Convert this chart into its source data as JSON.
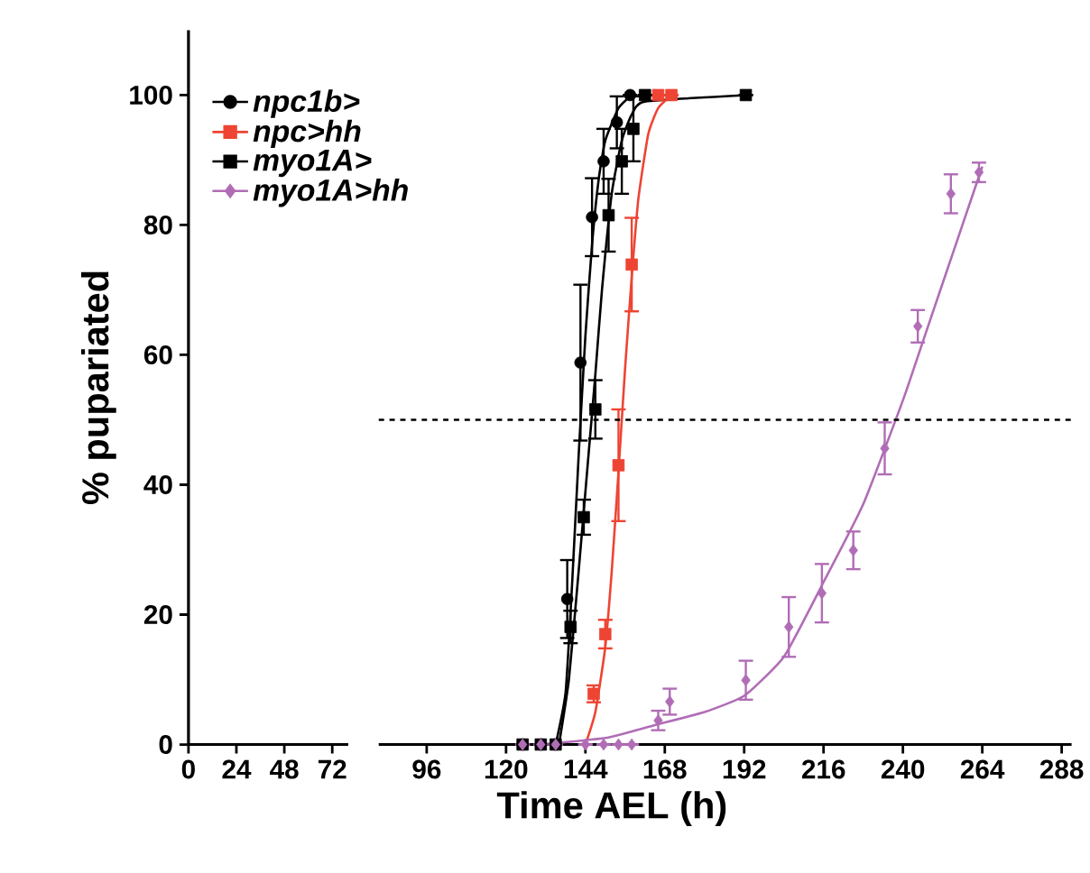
{
  "chart_data": [
    {
      "type": "line",
      "ylabel": "% pupariated",
      "xlim": [
        0,
        80
      ],
      "xticks": [
        0,
        24,
        48,
        72
      ],
      "ylim": [
        0,
        110
      ],
      "yticks": [
        0,
        20,
        40,
        60,
        80,
        100
      ]
    },
    {
      "type": "scatter",
      "xlabel": "Time AEL (h)",
      "xlim": [
        81.5,
        291
      ],
      "xticks": [
        96,
        120,
        144,
        168,
        192,
        216,
        240,
        264,
        288
      ],
      "ylim": [
        0,
        100
      ],
      "yticks": [
        0,
        20,
        40,
        60,
        80,
        100
      ],
      "tick_labels": "x",
      "legend": "top left",
      "ref_lines": [
        {
          "axis": "y",
          "value": 50,
          "line_style": "dashed",
          "color": "#000000"
        }
      ],
      "series": [
        {
          "type": "line",
          "color": "#000000",
          "x": [
            135,
            138,
            140,
            142,
            144,
            146,
            148,
            150,
            154,
            158
          ],
          "values": [
            0,
            8,
            25,
            45,
            63,
            77,
            87,
            93,
            98,
            100
          ]
        },
        {
          "type": "line",
          "color": "#000000",
          "x": [
            136,
            139,
            142,
            145,
            147,
            149,
            152,
            155,
            158,
            162,
            192.5
          ],
          "values": [
            0,
            10,
            27,
            45,
            57,
            70,
            85,
            93,
            97,
            99,
            100
          ]
        },
        {
          "type": "line",
          "color": "#ee4433",
          "x": [
            144,
            147,
            150,
            152,
            154,
            156,
            158,
            160,
            163,
            166,
            170
          ],
          "values": [
            0,
            5,
            15,
            27,
            42,
            58,
            72,
            84,
            94,
            98,
            100
          ]
        },
        {
          "type": "line",
          "color": "#b06db5",
          "x": [
            130,
            150,
            165,
            180,
            192,
            204,
            216,
            228,
            240,
            246,
            252,
            258,
            264
          ],
          "values": [
            0,
            1,
            3,
            5,
            7.5,
            13.5,
            25,
            37,
            53,
            62,
            71,
            80,
            89
          ]
        },
        {
          "name": "npc1b>",
          "marker": "circle",
          "color": "#000000",
          "x": [
            125,
            130.5,
            135,
            138.5,
            142.5,
            146,
            149.5,
            153.5,
            157.5
          ],
          "values": [
            0,
            0,
            0,
            22.4,
            58.8,
            81.2,
            89.8,
            95.8,
            100
          ],
          "errors": [
            null,
            null,
            null,
            6,
            12,
            6,
            5,
            4,
            null
          ]
        },
        {
          "name": "npc>hh",
          "marker": "square",
          "color": "#ee4433",
          "x": [
            146.5,
            150,
            154,
            158,
            166,
            170
          ],
          "values": [
            7.8,
            17,
            43,
            73.9,
            100,
            100
          ],
          "errors": [
            1.3,
            2.2,
            8.6,
            7.2,
            null,
            null
          ]
        },
        {
          "name": "myo1A>",
          "marker": "square",
          "color": "#000000",
          "x": [
            125,
            130.5,
            135,
            139.5,
            143.5,
            147,
            151,
            155,
            158.5,
            162,
            192.5
          ],
          "values": [
            0,
            0,
            0,
            18.1,
            35,
            51.6,
            81.5,
            89.8,
            94.8,
            100,
            100
          ],
          "errors": [
            null,
            null,
            null,
            2.5,
            2.7,
            4.5,
            5.6,
            5,
            5,
            null,
            null
          ]
        },
        {
          "name": "myo1A>hh",
          "marker": "diamond",
          "color": "#b06db5",
          "x": [
            125,
            130.5,
            135,
            144,
            149.5,
            154,
            158,
            166,
            169.5,
            192.5,
            205.5,
            215.5,
            225,
            234.5,
            244.5,
            254.5,
            263
          ],
          "values": [
            0,
            0,
            0,
            0,
            0,
            0,
            0,
            3.7,
            6.6,
            9.9,
            18.1,
            23.3,
            29.9,
            45.6,
            64.4,
            84.8,
            88.1
          ],
          "errors": [
            null,
            null,
            null,
            null,
            null,
            null,
            null,
            1.5,
            2,
            3,
            4.6,
            4.5,
            2.9,
            4,
            2.5,
            3,
            1.5
          ]
        }
      ]
    }
  ]
}
